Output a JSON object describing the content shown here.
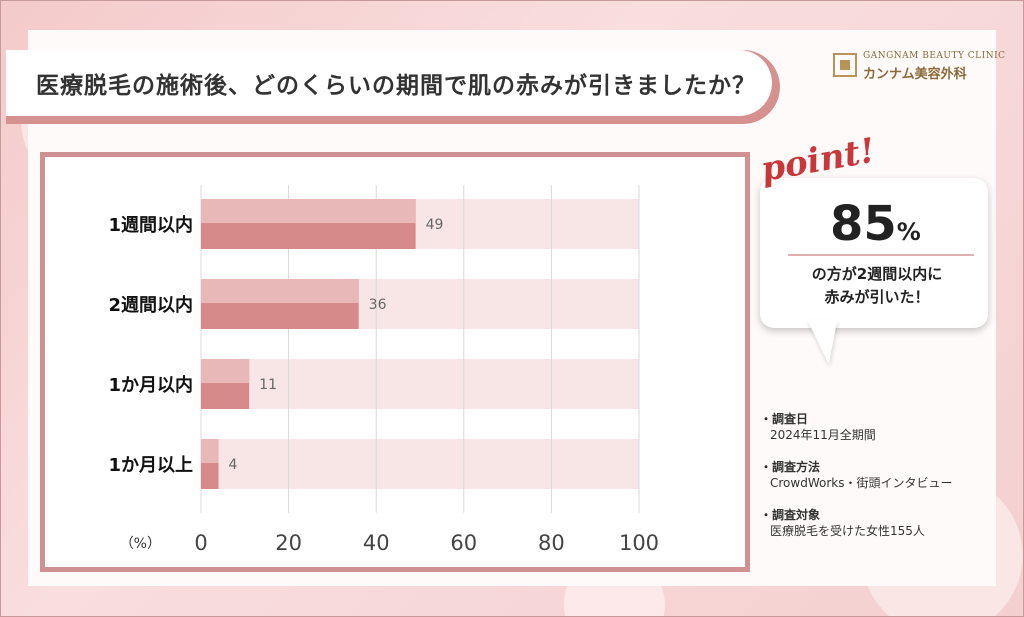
{
  "title": "医療脱毛の施術後、どのくらいの期間で肌の赤みが引きましたか？",
  "logo": {
    "en": "GANGNAM BEAUTY CLINIC",
    "jp": "カンナム美容外科"
  },
  "point": {
    "label": "point!",
    "value": "85",
    "unit": "%",
    "line1": "の方が2週間以内に",
    "line2": "赤みが引いた！"
  },
  "notes": [
    {
      "head": "・調査日",
      "body": "2024年11月全期間"
    },
    {
      "head": "・調査方法",
      "body": "CrowdWorks・街頭インタビュー"
    },
    {
      "head": "・調査対象",
      "body": "医療脱毛を受けた女性155人"
    }
  ],
  "colors": {
    "bar": "#d68a8a",
    "bar_light": "#e8b7b7",
    "track": "#f8e6e6",
    "accent": "#c8383b"
  },
  "chart_data": {
    "type": "bar",
    "orientation": "horizontal",
    "categories": [
      "1週間以内",
      "2週間以内",
      "1か月以内",
      "1か月以上"
    ],
    "values": [
      49,
      36,
      11,
      4
    ],
    "xlabel": "（%）",
    "ylabel": "",
    "xlim": [
      0,
      100
    ],
    "xticks": [
      0,
      20,
      40,
      60,
      80,
      100
    ],
    "grid": true
  }
}
